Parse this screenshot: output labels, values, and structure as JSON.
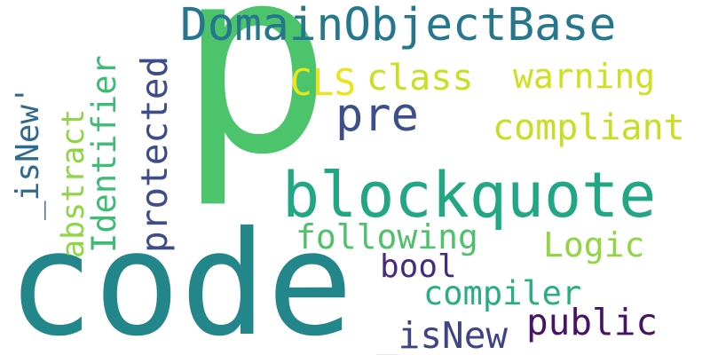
{
  "words": {
    "p": {
      "text": "p",
      "color": "#4cc46c"
    },
    "code": {
      "text": "code",
      "color": "#23868b"
    },
    "blockquote": {
      "text": "blockquote",
      "color": "#22a784"
    },
    "domainobjectbase": {
      "text": "DomainObjectBase",
      "color": "#25778e"
    },
    "pre": {
      "text": "pre",
      "color": "#3d4f89"
    },
    "cls": {
      "text": "CLS",
      "color": "#eae51a"
    },
    "class": {
      "text": "class",
      "color": "#c8e020"
    },
    "warning": {
      "text": "warning",
      "color": "#cfe11c"
    },
    "compliant": {
      "text": "compliant",
      "color": "#c6df23"
    },
    "following": {
      "text": "following",
      "color": "#4fc16a"
    },
    "logic": {
      "text": "Logic",
      "color": "#92d541"
    },
    "bool": {
      "text": "bool",
      "color": "#442b81"
    },
    "compiler": {
      "text": "compiler",
      "color": "#28ae80"
    },
    "public": {
      "text": "public",
      "color": "#471365"
    },
    "isnew": {
      "text": "_isNew",
      "color": "#3f4487"
    },
    "isnew_quote": {
      "text": "_isNew'",
      "color": "#2f6b8e"
    },
    "abstract": {
      "text": "abstract",
      "color": "#8ed645"
    },
    "identifier": {
      "text": "Identifier",
      "color": "#3ebb74"
    },
    "protected": {
      "text": "protected",
      "color": "#3e4c8a"
    }
  }
}
